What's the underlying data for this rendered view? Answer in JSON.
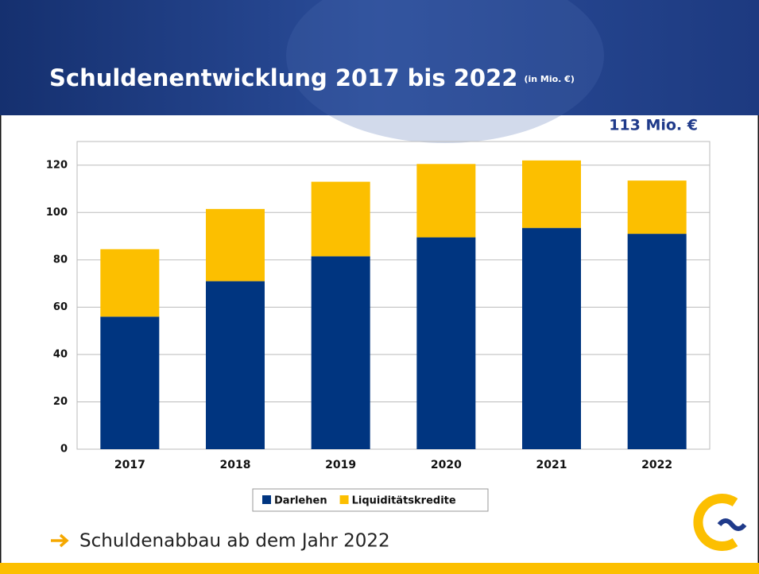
{
  "chart_data": {
    "type": "stacked_bar",
    "title": "Schuldenentwicklung 2017 bis 2022",
    "title_unit": "(in Mio. €)",
    "annotation": "113 Mio. €",
    "categories": [
      "2017",
      "2018",
      "2019",
      "2020",
      "2021",
      "2022"
    ],
    "series": [
      {
        "name": "Darlehen",
        "color": "#003580",
        "values": [
          56,
          71,
          81.5,
          89.5,
          93.5,
          91
        ]
      },
      {
        "name": "Liquiditätskredite",
        "color": "#fcbf00",
        "values": [
          28.5,
          30.5,
          31.5,
          31,
          28.5,
          22.5
        ]
      }
    ],
    "ylim": [
      0,
      130
    ],
    "yticks": [
      0,
      20,
      40,
      60,
      80,
      100,
      120
    ],
    "grid": true,
    "legend": "bottom"
  },
  "bullet": "Schuldenabbau ab dem Jahr 2022"
}
